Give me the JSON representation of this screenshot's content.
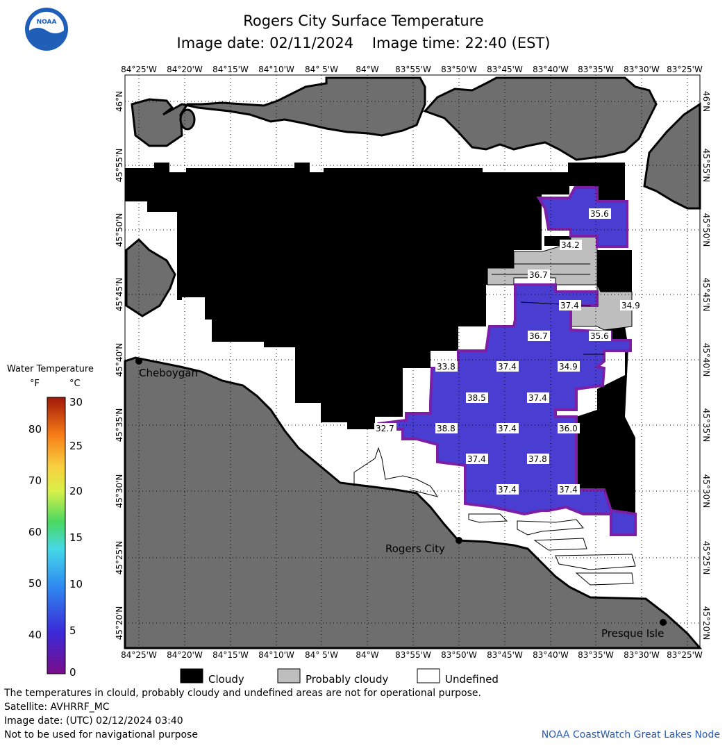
{
  "header": {
    "title": "Rogers City Surface Temperature",
    "image_date_label": "Image date: 02/11/2024",
    "image_time_label": "Image time: 22:40 (EST)"
  },
  "logo_text": "NOAA",
  "map": {
    "lon_labels": [
      "84°25'W",
      "84°20'W",
      "84°15'W",
      "84°10'W",
      "84° 5'W",
      "84°W",
      "83°55'W",
      "83°50'W",
      "83°45'W",
      "83°40'W",
      "83°35'W",
      "83°30'W",
      "83°25'W"
    ],
    "lat_labels": [
      "46°N",
      "45°55'N",
      "45°50'N",
      "45°45'N",
      "45°40'N",
      "45°35'N",
      "45°30'N",
      "45°25'N",
      "45°20'N"
    ],
    "places": [
      "Cheboygan",
      "Rogers City",
      "Presque Isle"
    ],
    "temp_labels": [
      "35.6",
      "34.2",
      "36.7",
      "37.4",
      "34.9",
      "36.7",
      "35.6",
      "33.8",
      "37.4",
      "34.9",
      "38.5",
      "37.4",
      "32.7",
      "38.8",
      "37.4",
      "36.0",
      "37.4",
      "37.8",
      "37.4",
      "37.4"
    ]
  },
  "colorbar": {
    "title": "Water Temperature",
    "unit_f": "°F",
    "unit_c": "°C",
    "f_ticks": [
      "80",
      "70",
      "60",
      "50",
      "40"
    ],
    "c_ticks": [
      "30",
      "25",
      "20",
      "15",
      "10",
      "5",
      "0"
    ]
  },
  "legend": {
    "cloudy": "Cloudy",
    "probably_cloudy": "Probably cloudy",
    "undefined": "Undefined"
  },
  "footer": {
    "disclaimer": "The temperatures in clould, probably cloudy and undefined areas are not for operational purpose.",
    "satellite": "Satellite: AVHRRF_MC",
    "utc_date": "Image date: (UTC) 02/12/2024  03:40",
    "nav_warning": "Not to be used for navigational purpose",
    "credit": "NOAA CoastWatch Great Lakes Node"
  },
  "colors": {
    "land": "#6e6e6e",
    "cloud": "#000000",
    "probably_cloudy": "#bebebe",
    "undefined": "#ffffff",
    "water_cold": "#7a1fa6",
    "water_mid": "#4a3dd2",
    "credit_text": "#2a5bb0"
  }
}
